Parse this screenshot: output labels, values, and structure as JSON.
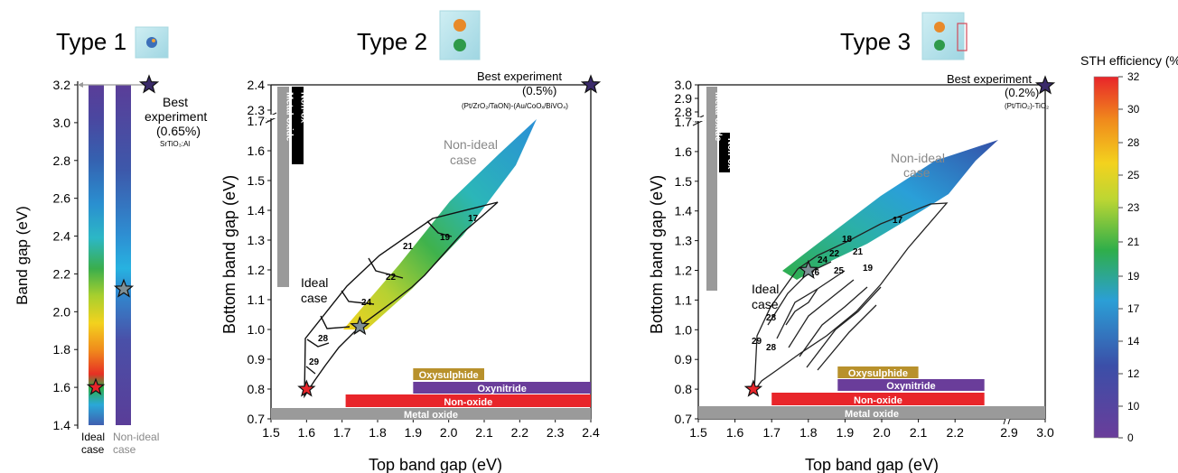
{
  "panels": {
    "type1": {
      "title": "Type 1",
      "ylabel": "Band gap (eV)",
      "yticks": [
        "1.4",
        "1.6",
        "1.8",
        "2.0",
        "2.2",
        "2.4",
        "2.6",
        "2.8",
        "3.0",
        "3.2"
      ],
      "ideal_label_1": "Ideal",
      "ideal_label_2": "case",
      "nonideal_label_1": "Non-ideal",
      "nonideal_label_2": "case",
      "best_1": "Best",
      "best_2": "experiment",
      "best_3": "(0.65%)",
      "best_4": "SrTiO₃:Al"
    },
    "type2": {
      "title": "Type 2",
      "xlabel": "Top band gap (eV)",
      "ylabel": "Bottom band gap (eV)",
      "xticks": [
        "1.5",
        "1.6",
        "1.7",
        "1.8",
        "1.9",
        "2.0",
        "2.1",
        "2.2",
        "2.3",
        "2.4"
      ],
      "yticks": [
        "0.7",
        "0.8",
        "0.9",
        "1.0",
        "1.1",
        "1.2",
        "1.3",
        "1.4",
        "1.5",
        "1.6",
        "1.7",
        "2.3",
        "2.4"
      ],
      "ideal_1": "Ideal",
      "ideal_2": "case",
      "nonideal_1": "Non-ideal",
      "nonideal_2": "case",
      "best_1": "Best experiment",
      "best_2": "(0.5%)",
      "best_3": "(Pt/ZrO₂/TaON)-(Au/CoOₓ/BiVO₄)",
      "contours": [
        "17",
        "19",
        "21",
        "22",
        "24",
        "28",
        "29"
      ],
      "bars": {
        "oxysulphide": "Oxysulphide",
        "oxynitride": "Oxynitride",
        "nonoxide": "Non-oxide",
        "metaloxide": "Metal oxide"
      },
      "vbars": {
        "nonox": "Non-ox",
        "metaloxide": "Metal oxide"
      }
    },
    "type3": {
      "title": "Type 3",
      "xlabel": "Top band gap (eV)",
      "ylabel": "Bottom band gap (eV)",
      "xticks": [
        "1.5",
        "1.6",
        "1.7",
        "1.8",
        "1.9",
        "2.0",
        "2.1",
        "2.2",
        "2.9",
        "3.0"
      ],
      "yticks": [
        "0.7",
        "0.8",
        "0.9",
        "1.0",
        "1.1",
        "1.2",
        "1.3",
        "1.4",
        "1.5",
        "1.6",
        "1.7",
        "2.8",
        "2.9",
        "3.0"
      ],
      "ideal_1": "Ideal",
      "ideal_2": "case",
      "nonideal_1": "Non-ideal",
      "nonideal_2": "case",
      "best_1": "Best experiment",
      "best_2": "(0.2%)",
      "best_3": "(Pt/TiO₂)-TiO₂",
      "contours": [
        "17",
        "18",
        "19",
        "21",
        "22",
        "24",
        "25",
        "26",
        "28",
        "28",
        "29"
      ],
      "bars": {
        "oxysulphide": "Oxysulphide",
        "oxynitride": "Oxynitride",
        "nonoxide": "Non-oxide",
        "metaloxide": "Metal oxide"
      },
      "vbars": {
        "nonox": "Non-ox",
        "metaloxide": "Metal oxide"
      }
    }
  },
  "colorbar": {
    "title": "STH efficiency (%)",
    "ticks": [
      "0",
      "10",
      "12",
      "14",
      "17",
      "19",
      "21",
      "23",
      "25",
      "28",
      "30",
      "32"
    ]
  },
  "colors": {
    "oxysulphide": "#b8912c",
    "oxynitride": "#6a3d9a",
    "nonoxide": "#e8252a",
    "metaloxide": "#9a9a9a",
    "ideal_star": "#e8252a",
    "nonideal_star": "#7f8f95",
    "best_star": "#3a2a6a"
  },
  "chart_data": [
    {
      "type": "heatmap",
      "title": "Type 1",
      "ylabel": "Band gap (eV)",
      "ylim": [
        1.4,
        3.2
      ],
      "series": [
        {
          "name": "Ideal case",
          "best_point_y": 1.6
        },
        {
          "name": "Non-ideal case",
          "best_point_y": 2.12
        }
      ],
      "best_experiment": {
        "y": 3.2,
        "efficiency_percent": 0.65,
        "material": "SrTiO₃:Al"
      }
    },
    {
      "type": "heatmap",
      "title": "Type 2",
      "xlabel": "Top band gap (eV)",
      "ylabel": "Bottom band gap (eV)",
      "xlim": [
        1.5,
        2.4
      ],
      "ylim": [
        0.7,
        2.4
      ],
      "ideal_optimum": {
        "x": 1.6,
        "y": 0.8
      },
      "nonideal_optimum": {
        "x": 1.75,
        "y": 1.01
      },
      "best_experiment": {
        "x": 2.4,
        "y": 2.4,
        "efficiency_percent": 0.5
      },
      "contour_levels": [
        17,
        19,
        21,
        22,
        24,
        28,
        29
      ],
      "material_ranges": [
        {
          "name": "Oxysulphide",
          "axis": "x",
          "range": [
            1.9,
            2.1
          ]
        },
        {
          "name": "Oxynitride",
          "axis": "x",
          "range": [
            1.9,
            2.4
          ]
        },
        {
          "name": "Non-oxide",
          "axis": "x",
          "range": [
            1.71,
            2.4
          ]
        },
        {
          "name": "Metal oxide",
          "axis": "x",
          "range": [
            1.5,
            2.4
          ]
        },
        {
          "name": "Non-ox",
          "axis": "y",
          "range": [
            1.65,
            2.4
          ]
        },
        {
          "name": "Metal oxide",
          "axis": "y",
          "range": [
            1.2,
            2.4
          ]
        }
      ]
    },
    {
      "type": "heatmap",
      "title": "Type 3",
      "xlabel": "Top band gap (eV)",
      "ylabel": "Bottom band gap (eV)",
      "xlim": [
        1.5,
        3.0
      ],
      "ylim": [
        0.7,
        3.0
      ],
      "ideal_optimum": {
        "x": 1.65,
        "y": 0.8
      },
      "nonideal_optimum": {
        "x": 1.8,
        "y": 1.2
      },
      "best_experiment": {
        "x": 3.0,
        "y": 3.0,
        "efficiency_percent": 0.2
      },
      "contour_levels": [
        17,
        18,
        19,
        21,
        22,
        24,
        25,
        26,
        28,
        29
      ],
      "material_ranges": [
        {
          "name": "Oxysulphide",
          "axis": "x",
          "range": [
            1.88,
            2.1
          ]
        },
        {
          "name": "Oxynitride",
          "axis": "x",
          "range": [
            1.88,
            2.28
          ]
        },
        {
          "name": "Non-oxide",
          "axis": "x",
          "range": [
            1.7,
            2.28
          ]
        },
        {
          "name": "Metal oxide",
          "axis": "x",
          "range": [
            1.5,
            3.0
          ]
        },
        {
          "name": "Non-ox",
          "axis": "y",
          "range": [
            1.65,
            1.79
          ]
        },
        {
          "name": "Metal oxide",
          "axis": "y",
          "range": [
            1.2,
            3.0
          ]
        }
      ]
    }
  ]
}
